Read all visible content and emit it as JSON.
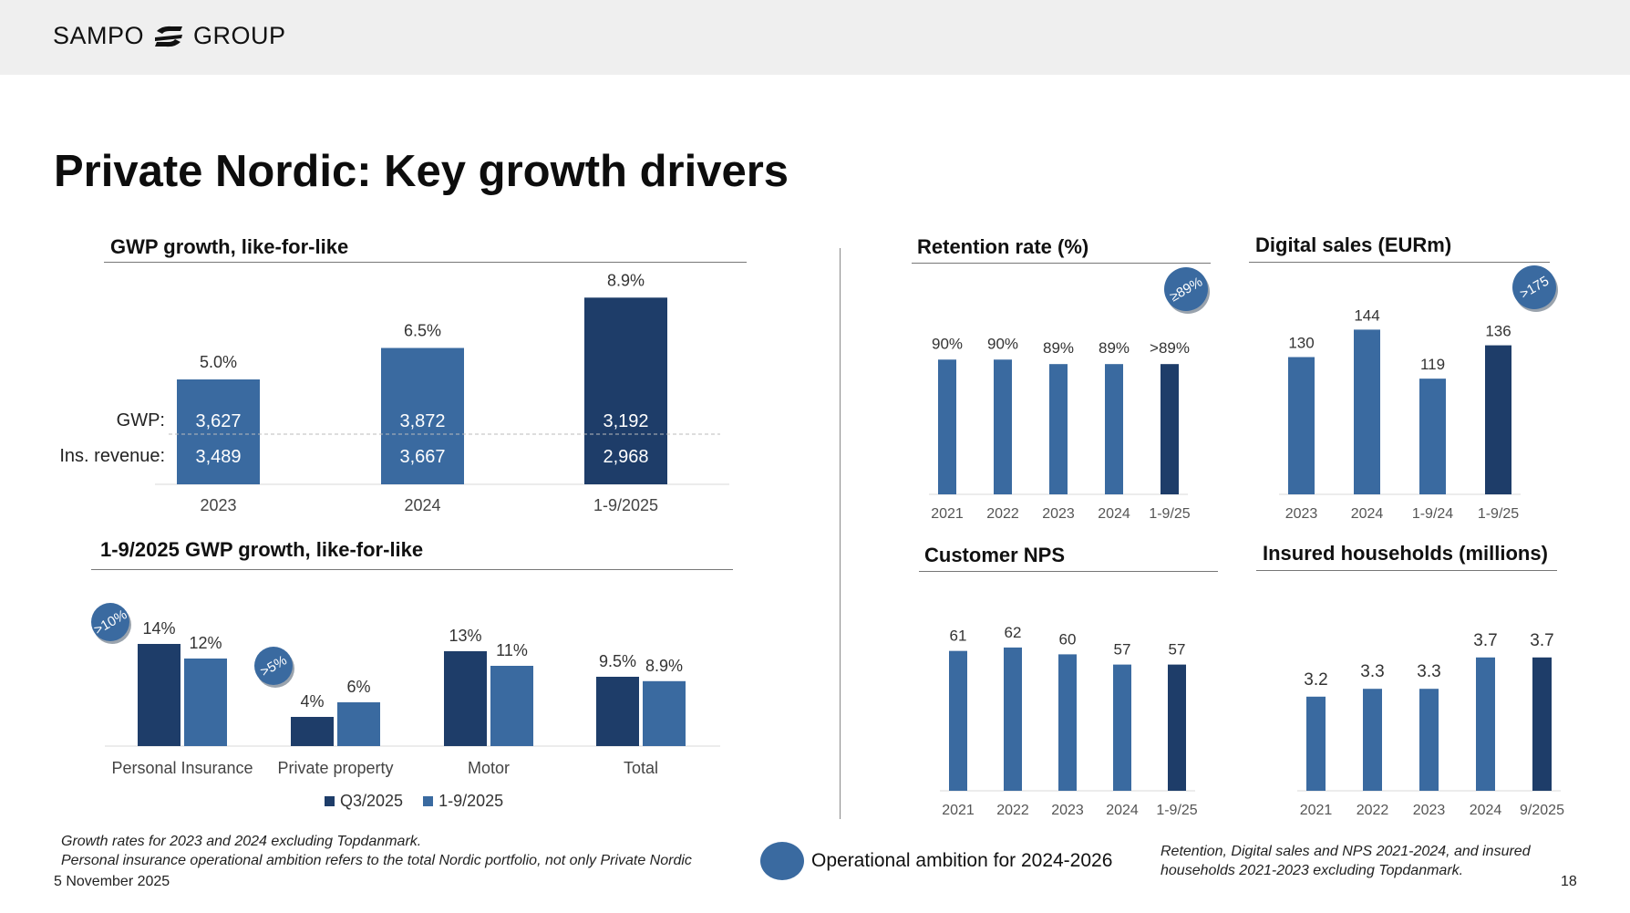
{
  "header": {
    "logo_left": "SAMPO",
    "logo_right": "GROUP"
  },
  "title": "Private Nordic: Key growth drivers",
  "colors": {
    "dark": "#1e3d69",
    "mid": "#3a6aa0",
    "badge": "#3a6aa0"
  },
  "gwp_chart": {
    "title": "GWP growth, like-for-like",
    "row_labels": {
      "gwp": "GWP:",
      "ins": "Ins. revenue:"
    },
    "chart_data": {
      "type": "bar",
      "categories": [
        "2023",
        "2024",
        "1-9/2025"
      ],
      "growth_labels": [
        "5.0%",
        "6.5%",
        "8.9%"
      ],
      "growth_values": [
        5.0,
        6.5,
        8.9
      ],
      "gwp_labels": [
        "3,627",
        "3,872",
        "3,192"
      ],
      "ins_labels": [
        "3,489",
        "3,667",
        "2,968"
      ],
      "ylim": [
        0,
        10
      ]
    }
  },
  "growth_chart": {
    "title": "1-9/2025 GWP growth, like-for-like",
    "legend": [
      "Q3/2025",
      "1-9/2025"
    ],
    "badges": [
      ">10%",
      ">5%"
    ],
    "chart_data": {
      "type": "bar",
      "categories": [
        "Personal Insurance",
        "Private property",
        "Motor",
        "Total"
      ],
      "series": [
        {
          "name": "Q3/2025",
          "values": [
            14,
            4,
            13,
            9.5
          ],
          "labels": [
            "14%",
            "4%",
            "13%",
            "9.5%"
          ]
        },
        {
          "name": "1-9/2025",
          "values": [
            12,
            6,
            11,
            8.9
          ],
          "labels": [
            "12%",
            "6%",
            "11%",
            "8.9%"
          ]
        }
      ],
      "ylim": [
        0,
        16
      ]
    }
  },
  "retention_chart": {
    "title": "Retention rate (%)",
    "badge": "≥89%",
    "chart_data": {
      "type": "bar",
      "categories": [
        "2021",
        "2022",
        "2023",
        "2024",
        "1-9/25"
      ],
      "values": [
        90,
        90,
        89,
        89,
        89
      ],
      "labels": [
        "90%",
        "90%",
        "89%",
        "89%",
        ">89%"
      ],
      "ylim": [
        0,
        100
      ]
    }
  },
  "digital_chart": {
    "title": "Digital sales (EURm)",
    "badge": ">175",
    "chart_data": {
      "type": "bar",
      "categories": [
        "2023",
        "2024",
        "1-9/24",
        "1-9/25"
      ],
      "values": [
        130,
        144,
        119,
        136
      ],
      "labels": [
        "130",
        "144",
        "119",
        "136"
      ],
      "ylim": [
        0,
        160
      ]
    }
  },
  "nps_chart": {
    "title": "Customer NPS",
    "chart_data": {
      "type": "bar",
      "categories": [
        "2021",
        "2022",
        "2023",
        "2024",
        "1-9/25"
      ],
      "values": [
        61,
        62,
        60,
        57,
        57
      ],
      "labels": [
        "61",
        "62",
        "60",
        "57",
        "57"
      ],
      "ylim": [
        0,
        70
      ]
    }
  },
  "households_chart": {
    "title": "Insured households (millions)",
    "chart_data": {
      "type": "bar",
      "categories": [
        "2021",
        "2022",
        "2023",
        "2024",
        "9/2025"
      ],
      "values": [
        3.2,
        3.3,
        3.3,
        3.7,
        3.7
      ],
      "labels": [
        "3.2",
        "3.3",
        "3.3",
        "3.7",
        "3.7"
      ],
      "ylim": [
        0,
        4.5
      ]
    }
  },
  "footer": {
    "note_left_1": "Growth rates for 2023 and 2024 excluding Topdanmark.",
    "note_left_2": "Personal insurance operational ambition refers to the total Nordic portfolio, not only Private Nordic",
    "ambition": "Operational ambition for 2024-2026",
    "note_right_1": "Retention, Digital sales and NPS 2021-2024, and insured",
    "note_right_2": "households 2021-2023 excluding Topdanmark.",
    "date": "5 November 2025",
    "page": "18"
  }
}
